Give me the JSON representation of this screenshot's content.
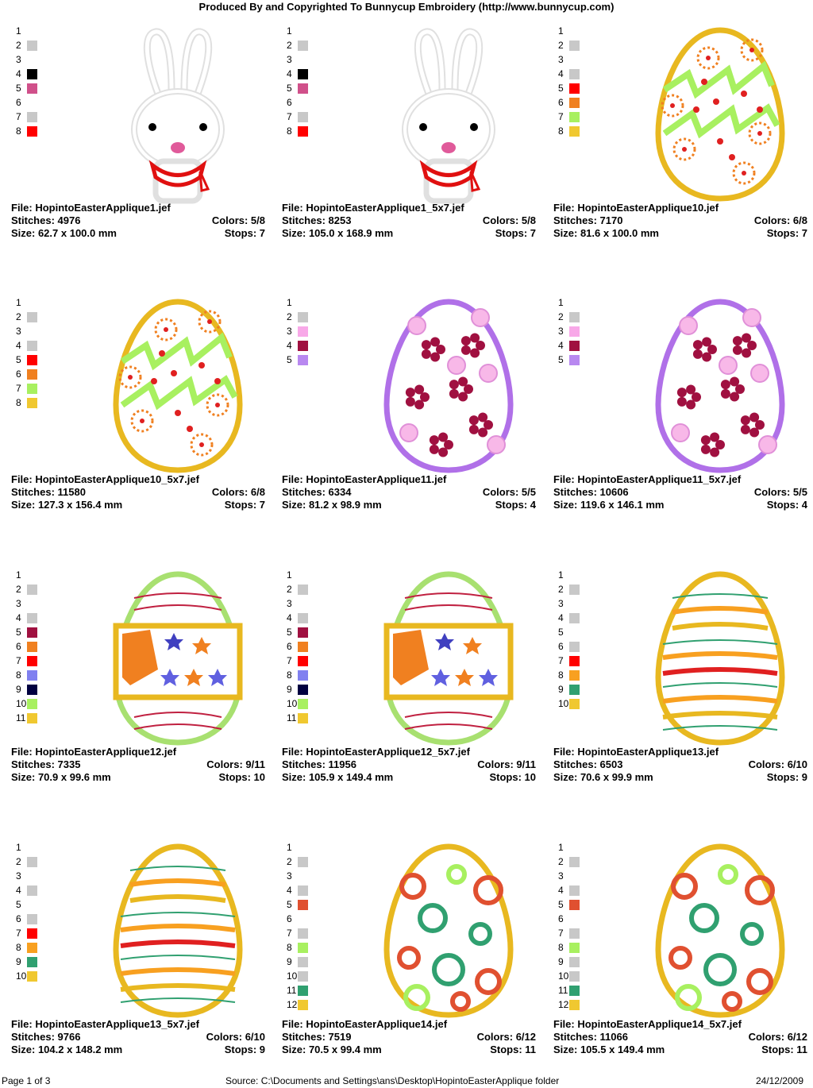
{
  "header": {
    "title": "Produced By and Copyrighted To Bunnycup Embroidery (http://www.bunnycup.com)"
  },
  "designs": [
    {
      "file": "File: HopintoEasterApplique1.jef",
      "stitches": "Stitches: 4976",
      "colors": "Colors: 5/8",
      "size": "Size: 62.7 x 100.0 mm",
      "stops": "Stops: 7",
      "art": "bunny",
      "legend": [
        "",
        "#c8c8c8",
        "",
        "#000000",
        "#d0508a",
        "",
        "#c8c8c8",
        "#ff0000"
      ]
    },
    {
      "file": "File: HopintoEasterApplique1_5x7.jef",
      "stitches": "Stitches: 8253",
      "colors": "Colors: 5/8",
      "size": "Size: 105.0 x 168.9 mm",
      "stops": "Stops: 7",
      "art": "bunny",
      "legend": [
        "",
        "#c8c8c8",
        "",
        "#000000",
        "#d0508a",
        "",
        "#c8c8c8",
        "#ff0000"
      ]
    },
    {
      "file": "File: HopintoEasterApplique10.jef",
      "stitches": "Stitches: 7170",
      "colors": "Colors: 6/8",
      "size": "Size: 81.6 x 100.0 mm",
      "stops": "Stops: 7",
      "art": "zigzag",
      "legend": [
        "",
        "#c8c8c8",
        "",
        "#c8c8c8",
        "#ff0000",
        "#f08020",
        "#a8f060",
        "#f0c830"
      ]
    },
    {
      "file": "File: HopintoEasterApplique10_5x7.jef",
      "stitches": "Stitches: 11580",
      "colors": "Colors: 6/8",
      "size": "Size: 127.3 x 156.4 mm",
      "stops": "Stops: 7",
      "art": "zigzag",
      "legend": [
        "",
        "#c8c8c8",
        "",
        "#c8c8c8",
        "#ff0000",
        "#f08020",
        "#a8f060",
        "#f0c830"
      ]
    },
    {
      "file": "File: HopintoEasterApplique11.jef",
      "stitches": "Stitches: 6334",
      "colors": "Colors: 5/5",
      "size": "Size: 81.2 x 98.9 mm",
      "stops": "Stops: 4",
      "art": "flowers",
      "legend": [
        "",
        "#c8c8c8",
        "#f8a8e8",
        "#a01040",
        "#b888f0"
      ]
    },
    {
      "file": "File: HopintoEasterApplique11_5x7.jef",
      "stitches": "Stitches: 10606",
      "colors": "Colors: 5/5",
      "size": "Size: 119.6 x 146.1 mm",
      "stops": "Stops: 4",
      "art": "flowers",
      "legend": [
        "",
        "#c8c8c8",
        "#f8a8e8",
        "#a01040",
        "#b888f0"
      ]
    },
    {
      "file": "File: HopintoEasterApplique12.jef",
      "stitches": "Stitches: 7335",
      "colors": "Colors: 9/11",
      "size": "Size: 70.9 x 99.6 mm",
      "stops": "Stops: 10",
      "art": "stars",
      "legend": [
        "",
        "#c8c8c8",
        "",
        "#c8c8c8",
        "#a01040",
        "#f08020",
        "#ff0000",
        "#8080f0",
        "#000040",
        "#a8f060",
        "#f0c830"
      ]
    },
    {
      "file": "File: HopintoEasterApplique12_5x7.jef",
      "stitches": "Stitches: 11956",
      "colors": "Colors: 9/11",
      "size": "Size: 105.9 x 149.4 mm",
      "stops": "Stops: 10",
      "art": "stars",
      "legend": [
        "",
        "#c8c8c8",
        "",
        "#c8c8c8",
        "#a01040",
        "#f08020",
        "#ff0000",
        "#8080f0",
        "#000040",
        "#a8f060",
        "#f0c830"
      ]
    },
    {
      "file": "File: HopintoEasterApplique13.jef",
      "stitches": "Stitches: 6503",
      "colors": "Colors: 6/10",
      "size": "Size: 70.6 x 99.9 mm",
      "stops": "Stops: 9",
      "art": "stripes",
      "legend": [
        "",
        "#c8c8c8",
        "",
        "#c8c8c8",
        "",
        "#c8c8c8",
        "#ff0000",
        "#f8a020",
        "#30a070",
        "#f0c830"
      ]
    },
    {
      "file": "File: HopintoEasterApplique13_5x7.jef",
      "stitches": "Stitches: 9766",
      "colors": "Colors: 6/10",
      "size": "Size: 104.2 x 148.2 mm",
      "stops": "Stops: 9",
      "art": "stripes",
      "legend": [
        "",
        "#c8c8c8",
        "",
        "#c8c8c8",
        "",
        "#c8c8c8",
        "#ff0000",
        "#f8a020",
        "#30a070",
        "#f0c830"
      ]
    },
    {
      "file": "File: HopintoEasterApplique14.jef",
      "stitches": "Stitches: 7519",
      "colors": "Colors: 6/12",
      "size": "Size: 70.5 x 99.4 mm",
      "stops": "Stops: 11",
      "art": "rings",
      "legend": [
        "",
        "#c8c8c8",
        "",
        "#c8c8c8",
        "#e05030",
        "",
        "#c8c8c8",
        "#a8f060",
        "#c8c8c8",
        "#c8c8c8",
        "#30a070",
        "#f0c830"
      ]
    },
    {
      "file": "File: HopintoEasterApplique14_5x7.jef",
      "stitches": "Stitches: 11066",
      "colors": "Colors: 6/12",
      "size": "Size: 105.5 x 149.4 mm",
      "stops": "Stops: 11",
      "art": "rings",
      "legend": [
        "",
        "#c8c8c8",
        "",
        "#c8c8c8",
        "#e05030",
        "",
        "#c8c8c8",
        "#a8f060",
        "#c8c8c8",
        "#c8c8c8",
        "#30a070",
        "#f0c830"
      ]
    }
  ],
  "footer": {
    "page": "Page 1 of 3",
    "source": "Source: C:\\Documents and Settings\\ans\\Desktop\\HopintoEasterApplique folder",
    "date": "24/12/2009"
  }
}
